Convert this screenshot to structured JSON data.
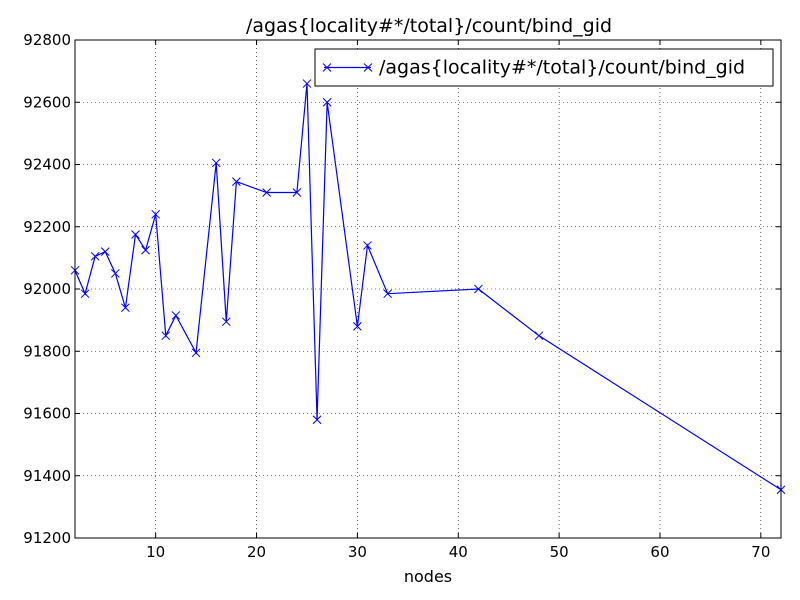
{
  "chart_data": {
    "type": "line",
    "title": "/agas{locality#*/total}/count/bind_gid",
    "xlabel": "nodes",
    "ylabel": "",
    "xlim": [
      2,
      72
    ],
    "ylim": [
      91200,
      92800
    ],
    "xticks": [
      10,
      20,
      30,
      40,
      50,
      60,
      70
    ],
    "yticks": [
      91200,
      91400,
      91600,
      91800,
      92000,
      92200,
      92400,
      92600,
      92800
    ],
    "grid": true,
    "legend_position": "top-right",
    "series": [
      {
        "name": "/agas{locality#*/total}/count/bind_gid",
        "color": "#0000ff",
        "marker": "x",
        "x": [
          2,
          3,
          4,
          5,
          6,
          7,
          8,
          9,
          10,
          11,
          12,
          14,
          16,
          17,
          18,
          21,
          24,
          25,
          26,
          27,
          30,
          31,
          33,
          42,
          48,
          72
        ],
        "y": [
          92060,
          91985,
          92105,
          92120,
          92050,
          91940,
          92175,
          92125,
          92240,
          91850,
          91915,
          91795,
          92405,
          91895,
          92345,
          92310,
          92310,
          92660,
          91580,
          92600,
          91880,
          92140,
          91985,
          92000,
          91850,
          91355
        ]
      }
    ]
  }
}
